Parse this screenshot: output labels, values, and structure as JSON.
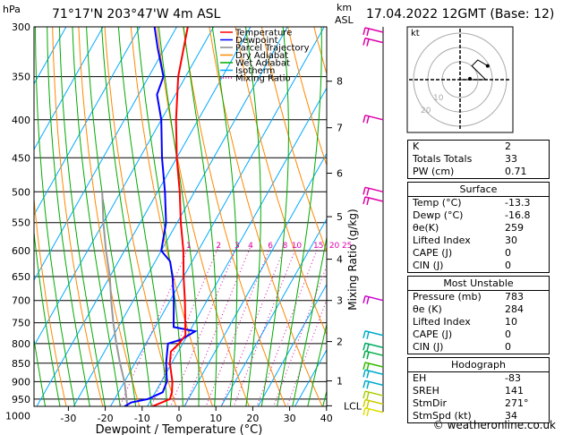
{
  "header": {
    "station": "71°17'N  203°47'W  4m  ASL",
    "datetime": "17.04.2022  12GMT  (Base: 12)",
    "hpa_label": "hPa",
    "km_label": "km",
    "asl_label": "ASL"
  },
  "legend": [
    {
      "label": "Temperature",
      "color": "#ff0000",
      "style": "solid"
    },
    {
      "label": "Dewpoint",
      "color": "#0000ff",
      "style": "solid"
    },
    {
      "label": "Parcel Trajectory",
      "color": "#888888",
      "style": "solid"
    },
    {
      "label": "Dry Adiabat",
      "color": "#ff8800",
      "style": "solid"
    },
    {
      "label": "Wet Adiabat",
      "color": "#00aa00",
      "style": "solid"
    },
    {
      "label": "Isotherm",
      "color": "#00aaff",
      "style": "solid"
    },
    {
      "label": "Mixing Ratio",
      "color": "#dd00aa",
      "style": "dotted"
    }
  ],
  "chart_data": {
    "type": "skew-t",
    "xlabel": "Dewpoint / Temperature (°C)",
    "ylabel_right": "Mixing Ratio (g/kg)",
    "x_ticks": [
      -30,
      -20,
      -10,
      0,
      10,
      20,
      30,
      40
    ],
    "p_ticks": [
      300,
      350,
      400,
      450,
      500,
      550,
      600,
      650,
      700,
      750,
      800,
      850,
      900,
      950,
      1000
    ],
    "km_ticks": [
      {
        "km": "1",
        "p": 898
      },
      {
        "km": "2",
        "p": 795
      },
      {
        "km": "3",
        "p": 700
      },
      {
        "km": "4",
        "p": 616
      },
      {
        "km": "5",
        "p": 540
      },
      {
        "km": "6",
        "p": 472
      },
      {
        "km": "7",
        "p": 410
      },
      {
        "km": "8",
        "p": 355
      }
    ],
    "lcl": {
      "label": "LCL",
      "p": 970
    },
    "mixing_ratio_labels": [
      "1",
      "2",
      "3",
      "4",
      "6",
      "8",
      "10",
      "15",
      "20",
      "25"
    ],
    "mixing_ratios": [
      1,
      2,
      3,
      4,
      6,
      8,
      10,
      15,
      20,
      25
    ],
    "temperature": [
      {
        "p": 1000,
        "t": -13.3
      },
      {
        "p": 980,
        "t": -10
      },
      {
        "p": 950,
        "t": -5
      },
      {
        "p": 930,
        "t": -5.5
      },
      {
        "p": 900,
        "t": -7
      },
      {
        "p": 850,
        "t": -10.5
      },
      {
        "p": 820,
        "t": -12
      },
      {
        "p": 800,
        "t": -11
      },
      {
        "p": 780,
        "t": -10.5
      },
      {
        "p": 750,
        "t": -12.5
      },
      {
        "p": 700,
        "t": -16
      },
      {
        "p": 650,
        "t": -20
      },
      {
        "p": 600,
        "t": -24
      },
      {
        "p": 550,
        "t": -29
      },
      {
        "p": 500,
        "t": -34
      },
      {
        "p": 450,
        "t": -40
      },
      {
        "p": 400,
        "t": -46
      },
      {
        "p": 350,
        "t": -52
      },
      {
        "p": 300,
        "t": -57
      }
    ],
    "dewpoint": [
      {
        "p": 1000,
        "t": -16.8
      },
      {
        "p": 980,
        "t": -17
      },
      {
        "p": 960,
        "t": -15
      },
      {
        "p": 950,
        "t": -11
      },
      {
        "p": 930,
        "t": -8
      },
      {
        "p": 900,
        "t": -8.5
      },
      {
        "p": 850,
        "t": -11.5
      },
      {
        "p": 820,
        "t": -13
      },
      {
        "p": 800,
        "t": -14
      },
      {
        "p": 790,
        "t": -11
      },
      {
        "p": 770,
        "t": -8.5
      },
      {
        "p": 760,
        "t": -15
      },
      {
        "p": 700,
        "t": -19
      },
      {
        "p": 650,
        "t": -23
      },
      {
        "p": 620,
        "t": -26
      },
      {
        "p": 600,
        "t": -30
      },
      {
        "p": 550,
        "t": -33
      },
      {
        "p": 500,
        "t": -38
      },
      {
        "p": 450,
        "t": -44
      },
      {
        "p": 400,
        "t": -50
      },
      {
        "p": 370,
        "t": -55
      },
      {
        "p": 350,
        "t": -56
      },
      {
        "p": 320,
        "t": -62
      },
      {
        "p": 300,
        "t": -66
      }
    ],
    "parcel": [
      {
        "p": 1000,
        "t": -13.3
      },
      {
        "p": 970,
        "t": -15.5
      },
      {
        "p": 900,
        "t": -20
      },
      {
        "p": 850,
        "t": -24
      },
      {
        "p": 800,
        "t": -28
      },
      {
        "p": 750,
        "t": -32
      },
      {
        "p": 700,
        "t": -36
      },
      {
        "p": 650,
        "t": -40
      },
      {
        "p": 600,
        "t": -45
      },
      {
        "p": 550,
        "t": -50
      },
      {
        "p": 500,
        "t": -55
      }
    ],
    "wind_barbs": [
      {
        "p": 305,
        "color": "#dd00aa"
      },
      {
        "p": 315,
        "color": "#dd00aa"
      },
      {
        "p": 400,
        "color": "#dd00aa"
      },
      {
        "p": 500,
        "color": "#dd00aa"
      },
      {
        "p": 515,
        "color": "#dd00aa"
      },
      {
        "p": 700,
        "color": "#cc00cc"
      },
      {
        "p": 780,
        "color": "#00aacc"
      },
      {
        "p": 810,
        "color": "#00aa66"
      },
      {
        "p": 830,
        "color": "#00aa44"
      },
      {
        "p": 860,
        "color": "#33bb00"
      },
      {
        "p": 880,
        "color": "#00aacc"
      },
      {
        "p": 910,
        "color": "#00aacc"
      },
      {
        "p": 940,
        "color": "#aacc00"
      },
      {
        "p": 965,
        "color": "#cccc00"
      },
      {
        "p": 990,
        "color": "#dddd00"
      }
    ]
  },
  "hodograph": {
    "unit_label": "kt",
    "ring_labels": [
      "10",
      "20"
    ],
    "points": [
      {
        "u": 0,
        "v": 0
      },
      {
        "u": 3,
        "v": 0
      },
      {
        "u": 8,
        "v": 0
      },
      {
        "u": 13,
        "v": 0
      },
      {
        "u": 10,
        "v": 3
      },
      {
        "u": 6,
        "v": 7
      },
      {
        "u": 9,
        "v": 10
      },
      {
        "u": 14,
        "v": 7
      }
    ]
  },
  "indices": {
    "basic": [
      {
        "label": "K",
        "value": "2"
      },
      {
        "label": "Totals Totals",
        "value": "33"
      },
      {
        "label": "PW (cm)",
        "value": "0.71"
      }
    ],
    "surface": {
      "title": "Surface",
      "rows": [
        {
          "label": "Temp (°C)",
          "value": "-13.3"
        },
        {
          "label": "Dewp (°C)",
          "value": "-16.8"
        },
        {
          "label": "θe(K)",
          "value": "259"
        },
        {
          "label": "Lifted Index",
          "value": "30"
        },
        {
          "label": "CAPE (J)",
          "value": "0"
        },
        {
          "label": "CIN (J)",
          "value": "0"
        }
      ]
    },
    "most_unstable": {
      "title": "Most Unstable",
      "rows": [
        {
          "label": "Pressure (mb)",
          "value": "783"
        },
        {
          "label": "θe (K)",
          "value": "284"
        },
        {
          "label": "Lifted Index",
          "value": "10"
        },
        {
          "label": "CAPE (J)",
          "value": "0"
        },
        {
          "label": "CIN (J)",
          "value": "0"
        }
      ]
    },
    "hodograph_box": {
      "title": "Hodograph",
      "rows": [
        {
          "label": "EH",
          "value": "-83"
        },
        {
          "label": "SREH",
          "value": "141"
        },
        {
          "label": "StmDir",
          "value": "271°"
        },
        {
          "label": "StmSpd (kt)",
          "value": "34"
        }
      ]
    }
  },
  "copyright": "© weatheronline.co.uk"
}
